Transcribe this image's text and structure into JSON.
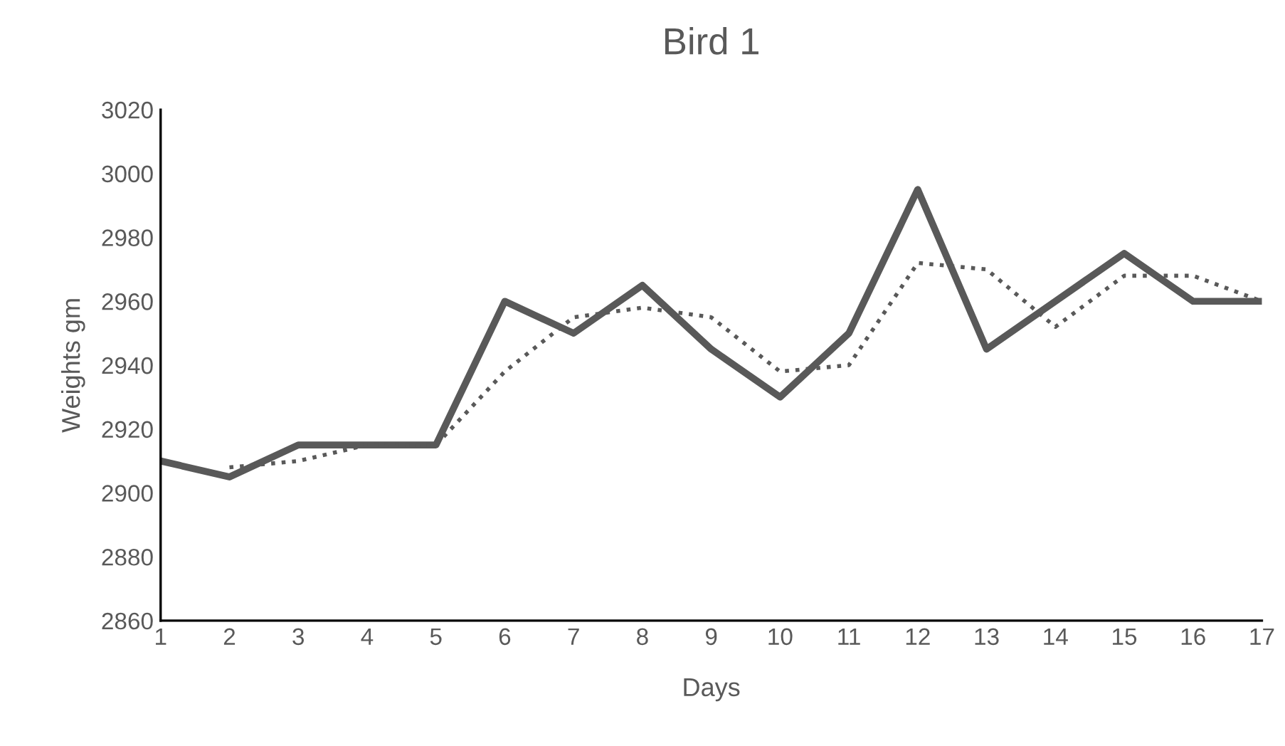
{
  "chart_data": {
    "type": "line",
    "title": "Bird 1",
    "xlabel": "Days",
    "ylabel": "Weights gm",
    "xlim": [
      1,
      17
    ],
    "xticks": [
      1,
      2,
      3,
      4,
      5,
      6,
      7,
      8,
      9,
      10,
      11,
      12,
      13,
      14,
      15,
      16,
      17
    ],
    "ylim": [
      2860,
      3020
    ],
    "yticks": [
      2860,
      2880,
      2900,
      2920,
      2940,
      2960,
      2980,
      3000,
      3020
    ],
    "grid": false,
    "marker": "none",
    "series": [
      {
        "color": "#595959",
        "line_style": "solid",
        "x": [
          1,
          2,
          3,
          4,
          5,
          6,
          7,
          8,
          9,
          10,
          11,
          12,
          13,
          14,
          15,
          16,
          17
        ],
        "values": [
          2910,
          2905,
          2915,
          2915,
          2915,
          2960,
          2950,
          2965,
          2945,
          2930,
          2950,
          2995,
          2945,
          2960,
          2975,
          2960,
          2960
        ]
      },
      {
        "color": "#595959",
        "line_style": "dotted",
        "x": [
          2,
          3,
          4,
          5,
          6,
          7,
          8,
          9,
          10,
          11,
          12,
          13,
          14,
          15,
          16,
          17
        ],
        "values": [
          2908,
          2910,
          2915,
          2915,
          2938,
          2955,
          2958,
          2955,
          2938,
          2940,
          2972,
          2970,
          2952,
          2968,
          2968,
          2960
        ]
      }
    ]
  }
}
